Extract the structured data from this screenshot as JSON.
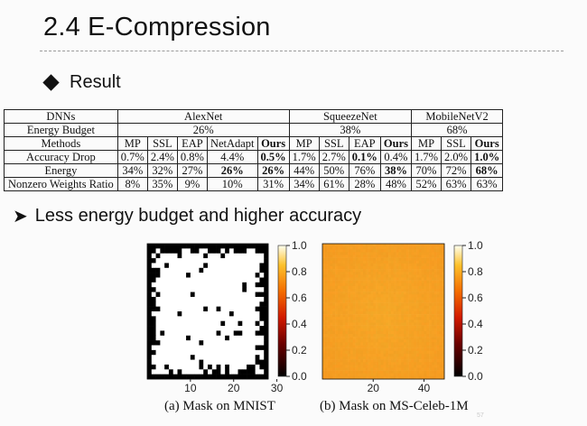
{
  "slide": {
    "title": "2.4 E-Compression",
    "bullet_result": "Result",
    "bullet_less": "Less energy budget and higher accuracy"
  },
  "table": {
    "header_dnns": "DNNs",
    "groups": [
      "AlexNet",
      "SqueezeNet",
      "MobileNetV2"
    ],
    "energy_budget_label": "Energy Budget",
    "energy_budgets": [
      "26%",
      "38%",
      "68%"
    ],
    "methods_label": "Methods",
    "methods": [
      "MP",
      "SSL",
      "EAP",
      "NetAdapt",
      "Ours",
      "MP",
      "SSL",
      "EAP",
      "Ours",
      "MP",
      "SSL",
      "Ours"
    ],
    "rows": [
      {
        "label": "Accuracy Drop",
        "values": [
          "0.7%",
          "2.4%",
          "0.8%",
          "4.4%",
          "0.5%",
          "1.7%",
          "2.7%",
          "0.1%",
          "0.4%",
          "1.7%",
          "2.0%",
          "1.0%"
        ],
        "bold": [
          4,
          7,
          11
        ]
      },
      {
        "label": "Energy",
        "values": [
          "34%",
          "32%",
          "27%",
          "26%",
          "26%",
          "44%",
          "50%",
          "76%",
          "38%",
          "70%",
          "72%",
          "68%"
        ],
        "bold": [
          3,
          4,
          8,
          11
        ]
      },
      {
        "label": "Nonzero Weights Ratio",
        "values": [
          "8%",
          "35%",
          "9%",
          "10%",
          "31%",
          "34%",
          "61%",
          "28%",
          "48%",
          "52%",
          "63%",
          "63%"
        ],
        "bold": []
      }
    ]
  },
  "figures": {
    "mnist": {
      "caption": "(a) Mask on MNIST",
      "x_ticks": [
        "10",
        "20",
        "30"
      ],
      "colorbar_ticks": [
        "1.0",
        "0.8",
        "0.6",
        "0.4",
        "0.2",
        "0.0"
      ]
    },
    "celeb": {
      "caption": "(b) Mask on MS-Celeb-1M",
      "x_ticks": [
        "20",
        "40"
      ],
      "colorbar_ticks": [
        "1.0",
        "0.8",
        "0.6",
        "0.4",
        "0.2",
        "0.0"
      ]
    }
  },
  "page_number": "57"
}
